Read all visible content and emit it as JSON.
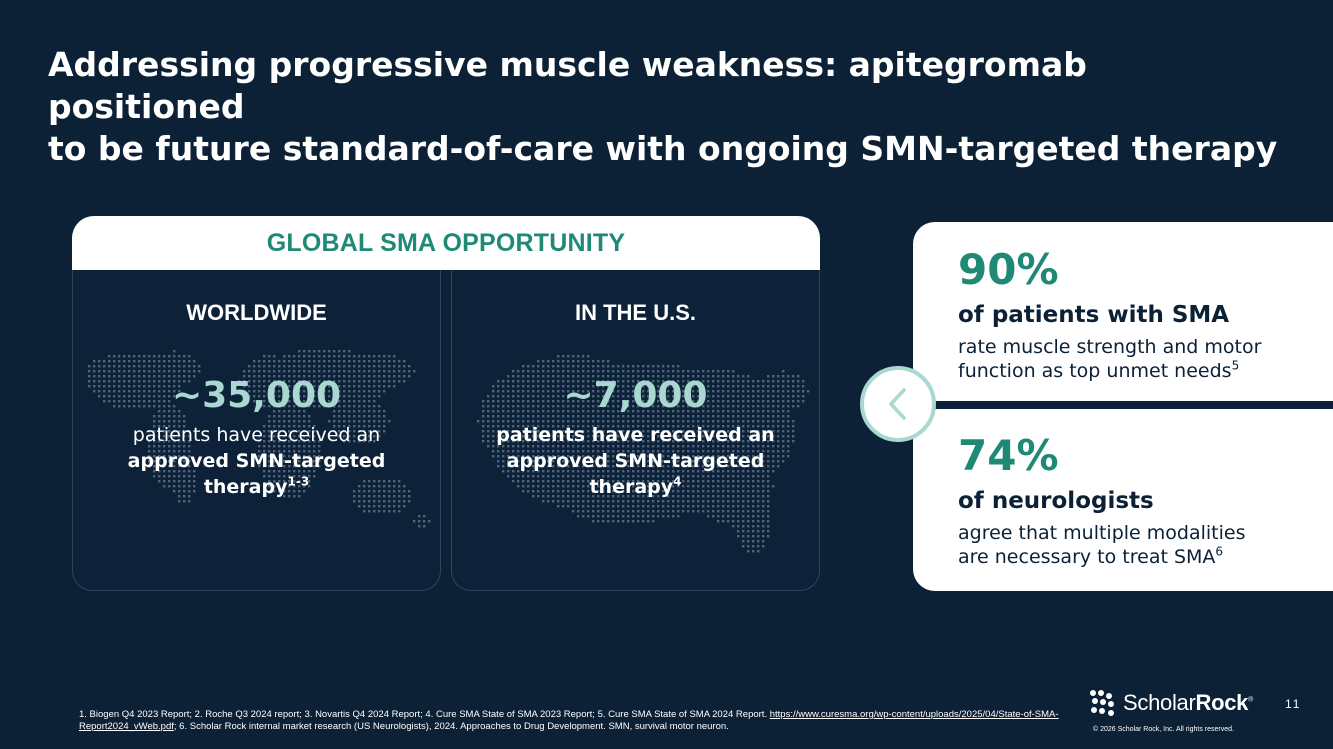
{
  "title": {
    "line1": "Addressing progressive muscle weakness: apitegromab positioned",
    "line2": "to be future standard-of-care with ongoing SMN-targeted therapy"
  },
  "opportunity": {
    "header": "GLOBAL SMA OPPORTUNITY",
    "worldwide": {
      "label": "WORLDWIDE",
      "number": "~35,000",
      "desc_line1": "patients have received an",
      "desc_line2": "approved SMN-targeted",
      "desc_line3": "therapy",
      "ref": "1-3",
      "map_icon": "world-map-icon"
    },
    "us": {
      "label": "IN THE U.S.",
      "number": "~7,000",
      "desc_line1": "patients have received an",
      "desc_line2": "approved SMN-targeted",
      "desc_line3": "therapy",
      "ref": "4",
      "map_icon": "us-map-icon"
    }
  },
  "stats": [
    {
      "pct": "90%",
      "head": "of patients with SMA",
      "line1": "rate muscle strength and motor",
      "line2": "function as top unmet needs",
      "ref": "5"
    },
    {
      "pct": "74%",
      "head": "of neurologists",
      "line1": "agree that multiple modalities",
      "line2": "are necessary to treat SMA",
      "ref": "6"
    }
  ],
  "chevron_icon": "chevron-left-icon",
  "footnote": {
    "part1": "1. Biogen Q4 2023 Report; 2. Roche Q3 2024 report; 3. Novartis Q4 2024 Report; 4. Cure SMA State of SMA 2023 Report; 5. Cure SMA State of SMA 2024 Report. ",
    "link": "https://www.curesma.org/wp-content/uploads/2025/04/State-of-SMA-Report2024_vWeb.pdf",
    "part2": "; 6. Scholar Rock internal market research (US Neurologists), 2024. Approaches to Drug Development. SMN, survival motor neuron."
  },
  "logo": {
    "light": "Scholar",
    "bold": "Rock",
    "mark": "®",
    "icon": "scholar-rock-logo-icon"
  },
  "page_number": "11",
  "copyright": "© 2026 Scholar Rock, Inc. All rights reserved.",
  "colors": {
    "background": "#0c2136",
    "accent_green": "#1e8a76",
    "accent_light": "#a9d8d0"
  }
}
